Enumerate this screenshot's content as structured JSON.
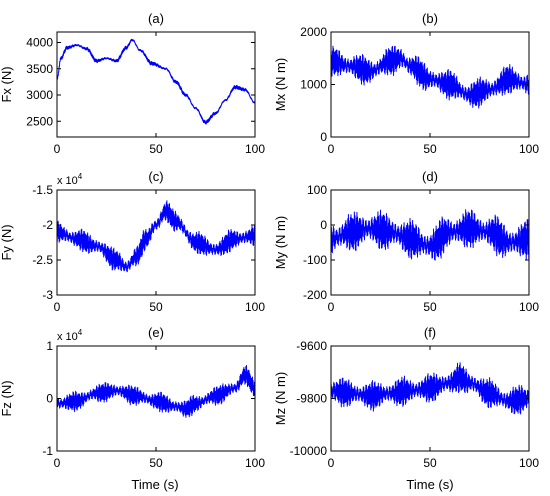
{
  "figure": {
    "xlabel": "Time (s)"
  },
  "chart_data": [
    {
      "type": "line",
      "title": "(a)",
      "ylabel": "Fx (N)",
      "exponent": "",
      "xlim": [
        0,
        100
      ],
      "ylim": [
        2200,
        4200
      ],
      "xticks": [
        0,
        50,
        100
      ],
      "yticks": [
        2500,
        3000,
        3500,
        4000
      ],
      "ytick_labels": [
        "2500",
        "3000",
        "3500",
        "4000"
      ],
      "series": [
        {
          "color": "#0000ff",
          "noise": 0.015,
          "x": [
            0,
            2,
            5,
            10,
            15,
            20,
            25,
            30,
            35,
            38,
            42,
            48,
            55,
            60,
            65,
            70,
            75,
            80,
            85,
            90,
            95,
            100
          ],
          "y": [
            3300,
            3700,
            3900,
            3950,
            3880,
            3650,
            3700,
            3650,
            3900,
            4050,
            3850,
            3600,
            3500,
            3250,
            3000,
            2750,
            2480,
            2650,
            2900,
            3150,
            3100,
            2850
          ]
        }
      ]
    },
    {
      "type": "line",
      "title": "(b)",
      "ylabel": "Mx (N m)",
      "exponent": "",
      "xlim": [
        0,
        100
      ],
      "ylim": [
        0,
        2000
      ],
      "xticks": [
        0,
        50,
        100
      ],
      "yticks": [
        0,
        1000,
        2000
      ],
      "ytick_labels": [
        "0",
        "1000",
        "2000"
      ],
      "series": [
        {
          "color": "#0000ff",
          "noise": 0.12,
          "x": [
            0,
            10,
            20,
            30,
            35,
            40,
            50,
            60,
            70,
            80,
            90,
            100
          ],
          "y": [
            1450,
            1350,
            1250,
            1450,
            1500,
            1350,
            1100,
            1000,
            800,
            900,
            1100,
            1000
          ]
        }
      ]
    },
    {
      "type": "line",
      "title": "(c)",
      "ylabel": "Fy (N)",
      "exponent": "x 10^4",
      "xlim": [
        0,
        100
      ],
      "ylim": [
        -3,
        -1.5
      ],
      "xticks": [
        0,
        50,
        100
      ],
      "yticks": [
        -3,
        -2.5,
        -2,
        -1.5
      ],
      "ytick_labels": [
        "-3",
        "-2.5",
        "-2",
        "-1.5"
      ],
      "series": [
        {
          "color": "#0000ff",
          "noise": 0.09,
          "x": [
            0,
            10,
            20,
            30,
            35,
            40,
            45,
            50,
            55,
            60,
            70,
            80,
            90,
            100
          ],
          "y": [
            -2.1,
            -2.2,
            -2.3,
            -2.5,
            -2.6,
            -2.45,
            -2.2,
            -2.0,
            -1.8,
            -1.95,
            -2.25,
            -2.35,
            -2.2,
            -2.15
          ]
        }
      ]
    },
    {
      "type": "line",
      "title": "(d)",
      "ylabel": "My (N m)",
      "exponent": "",
      "xlim": [
        0,
        100
      ],
      "ylim": [
        -200,
        100
      ],
      "xticks": [
        0,
        50,
        100
      ],
      "yticks": [
        -200,
        -100,
        0,
        100
      ],
      "ytick_labels": [
        "-200",
        "-100",
        "0",
        "100"
      ],
      "series": [
        {
          "color": "#0000ff",
          "noise": 0.16,
          "x": [
            0,
            10,
            20,
            30,
            40,
            50,
            60,
            70,
            80,
            90,
            100
          ],
          "y": [
            -40,
            -20,
            -10,
            -20,
            -40,
            -60,
            -20,
            -10,
            -20,
            -50,
            -40
          ]
        }
      ]
    },
    {
      "type": "line",
      "title": "(e)",
      "ylabel": "Fz (N)",
      "exponent": "x 10^4",
      "xlim": [
        0,
        100
      ],
      "ylim": [
        -1,
        1
      ],
      "xticks": [
        0,
        50,
        100
      ],
      "yticks": [
        -1,
        0,
        1
      ],
      "ytick_labels": [
        "-1",
        "0",
        "1"
      ],
      "series": [
        {
          "color": "#0000ff",
          "noise": 0.08,
          "x": [
            0,
            10,
            20,
            30,
            40,
            50,
            60,
            65,
            70,
            80,
            90,
            95,
            100
          ],
          "y": [
            -0.1,
            -0.05,
            0.1,
            0.15,
            0.05,
            -0.05,
            -0.15,
            -0.2,
            -0.1,
            0.05,
            0.2,
            0.45,
            0.2
          ]
        }
      ]
    },
    {
      "type": "line",
      "title": "(f)",
      "ylabel": "Mz (N m)",
      "exponent": "",
      "xlim": [
        0,
        100
      ],
      "ylim": [
        -10000,
        -9600
      ],
      "xticks": [
        0,
        50,
        100
      ],
      "yticks": [
        -10000,
        -9800,
        -9600
      ],
      "ytick_labels": [
        "-10000",
        "-9800",
        "-9600"
      ],
      "series": [
        {
          "color": "#0000ff",
          "noise": 0.12,
          "x": [
            0,
            10,
            20,
            30,
            40,
            50,
            60,
            65,
            70,
            80,
            90,
            100
          ],
          "y": [
            -9770,
            -9780,
            -9790,
            -9780,
            -9770,
            -9760,
            -9740,
            -9720,
            -9740,
            -9780,
            -9810,
            -9800
          ]
        }
      ]
    }
  ]
}
